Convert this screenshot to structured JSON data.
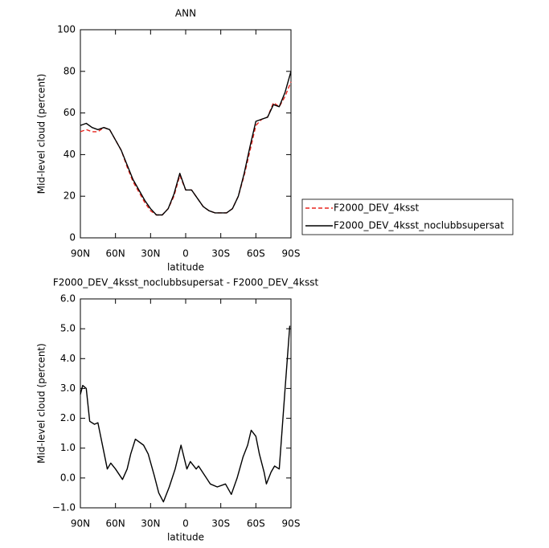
{
  "chart_data": [
    {
      "type": "line",
      "title": "ANN",
      "xlabel": "latitude",
      "ylabel": "Mid-level cloud (percent)",
      "x": [
        90,
        85,
        80,
        75,
        70,
        65,
        60,
        55,
        50,
        45,
        40,
        35,
        30,
        25,
        20,
        15,
        10,
        5,
        0,
        -5,
        -10,
        -15,
        -20,
        -25,
        -30,
        -35,
        -40,
        -45,
        -50,
        -55,
        -60,
        -65,
        -70,
        -75,
        -80,
        -85,
        -90
      ],
      "xlim": [
        90,
        -90
      ],
      "xticks": [
        {
          "value": 90,
          "label": "90N"
        },
        {
          "value": 60,
          "label": "60N"
        },
        {
          "value": 30,
          "label": "30N"
        },
        0,
        {
          "value": -30,
          "label": "30S"
        },
        {
          "value": -60,
          "label": "60S"
        },
        {
          "value": -90,
          "label": "90S"
        }
      ],
      "ylim": [
        0,
        100
      ],
      "yticks": [
        0,
        20,
        40,
        60,
        80,
        100
      ],
      "legend": "right",
      "series": [
        {
          "name": "F2000_DEV_4ksst",
          "color": "#e8251e",
          "linestyle": "dashed",
          "values": [
            51,
            52,
            51,
            51,
            53,
            52,
            47,
            42,
            34,
            27,
            22,
            17,
            13,
            11,
            11,
            14,
            20,
            30,
            23,
            23,
            19,
            15,
            13,
            12,
            12,
            12,
            14,
            20,
            30,
            42,
            54,
            57,
            58,
            65,
            63,
            68,
            75
          ]
        },
        {
          "name": "F2000_DEV_4ksst_noclubbsupersat",
          "color": "#000000",
          "linestyle": "solid",
          "values": [
            54,
            55,
            53,
            52,
            53,
            52,
            47,
            42,
            35,
            28,
            23,
            18,
            14,
            11,
            11,
            14,
            21,
            31,
            23,
            23,
            19,
            15,
            13,
            12,
            12,
            12,
            14,
            20,
            31,
            44,
            56,
            57,
            58,
            64,
            63,
            70,
            80
          ]
        }
      ]
    },
    {
      "type": "line",
      "title": "F2000_DEV_4ksst_noclubbsupersat - F2000_DEV_4ksst",
      "xlabel": "latitude",
      "ylabel": "Mid-level cloud (percent)",
      "x": [
        90,
        88,
        85,
        82,
        78,
        75,
        67,
        64,
        60,
        54,
        50,
        47,
        43,
        36,
        32,
        27,
        23,
        19,
        14,
        9,
        4,
        -1,
        -4,
        -9,
        -11,
        -16,
        -21,
        -27,
        -34,
        -39,
        -44,
        -49,
        -53,
        -56,
        -60,
        -63,
        -67,
        -69,
        -73,
        -76,
        -80,
        -85,
        -89
      ],
      "xlim": [
        90,
        -90
      ],
      "xticks": [
        {
          "value": 90,
          "label": "90N"
        },
        {
          "value": 60,
          "label": "60N"
        },
        {
          "value": 30,
          "label": "30N"
        },
        0,
        {
          "value": -30,
          "label": "30S"
        },
        {
          "value": -60,
          "label": "60S"
        },
        {
          "value": -90,
          "label": "90S"
        }
      ],
      "ylim": [
        -1,
        6
      ],
      "yticks": [
        {
          "value": -1,
          "label": "−1.0"
        },
        {
          "value": 0,
          "label": "0.0"
        },
        {
          "value": 1,
          "label": "1.0"
        },
        {
          "value": 2,
          "label": "2.0"
        },
        {
          "value": 3,
          "label": "3.0"
        },
        {
          "value": 4,
          "label": "4.0"
        },
        {
          "value": 5,
          "label": "5.0"
        },
        {
          "value": 6,
          "label": "6.0"
        }
      ],
      "color": "#000000",
      "values": [
        2.8,
        3.1,
        3.0,
        1.9,
        1.8,
        1.85,
        0.3,
        0.5,
        0.3,
        -0.05,
        0.3,
        0.8,
        1.3,
        1.1,
        0.8,
        0.1,
        -0.5,
        -0.8,
        -0.3,
        0.3,
        1.1,
        0.3,
        0.55,
        0.3,
        0.4,
        0.1,
        -0.2,
        -0.3,
        -0.2,
        -0.55,
        0,
        0.7,
        1.1,
        1.6,
        1.4,
        0.8,
        0.2,
        -0.2,
        0.2,
        0.4,
        0.3,
        3.0,
        5.1
      ]
    }
  ]
}
